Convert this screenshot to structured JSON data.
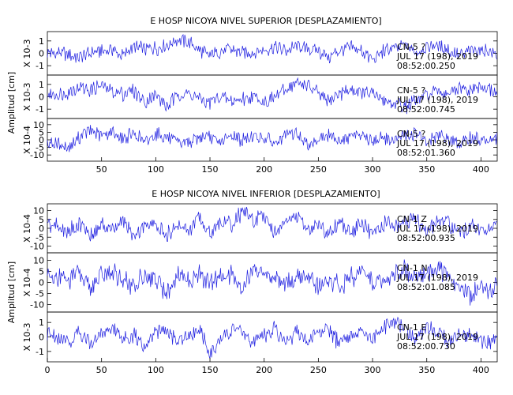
{
  "chart_data": [
    {
      "type": "line",
      "title": "E HOSP NICOYA NIVEL SUPERIOR [DESPLAZAMIENTO]",
      "ylabel": "Amplitud [cm]",
      "xlabel": "",
      "xlim": [
        0,
        415
      ],
      "xticks": [
        "50",
        "100",
        "150",
        "200",
        "250",
        "300",
        "350",
        "400"
      ],
      "grid": false,
      "line_color": "#2020e0",
      "panels": [
        {
          "scale_label": "X 10-3",
          "yticks": [
            "1",
            "0",
            "-1"
          ],
          "ylim": [
            -1.5,
            1.5
          ],
          "info": [
            "CN-5  ?",
            "JUL 17 (198), 2019",
            "08:52:00.250"
          ],
          "series": [
            {
              "x": [
                0,
                10,
                20,
                30,
                40,
                50,
                60,
                70,
                80,
                90,
                100,
                110,
                120,
                130,
                140,
                150,
                160,
                170,
                180,
                190,
                200,
                210,
                220,
                230,
                240,
                250,
                260,
                270,
                280,
                290,
                300,
                310,
                320,
                330,
                340,
                350,
                360,
                370,
                380,
                390,
                400,
                415
              ],
              "values": [
                0.1,
                0.0,
                -0.1,
                -0.3,
                0.0,
                0.2,
                0.3,
                -0.2,
                0.5,
                0.3,
                0.4,
                0.6,
                1.2,
                0.9,
                0.3,
                -0.2,
                0.2,
                0.3,
                0.0,
                0.1,
                0.3,
                0.5,
                0.2,
                0.6,
                0.4,
                0.2,
                -0.4,
                0.3,
                0.4,
                0.2,
                -0.6,
                0.2,
                0.4,
                0.7,
                0.1,
                0.5,
                0.6,
                0.3,
                -0.2,
                0.2,
                0.3,
                0.0
              ]
            }
          ]
        },
        {
          "scale_label": "X 10-3",
          "yticks": [
            "1",
            "0",
            "-1"
          ],
          "ylim": [
            -1.5,
            1.5
          ],
          "info": [
            "CN-5  ?",
            "JUL 17 (198), 2019",
            "08:52:00.745"
          ],
          "series": [
            {
              "x": [
                0,
                10,
                20,
                30,
                40,
                50,
                60,
                70,
                80,
                90,
                100,
                110,
                120,
                130,
                140,
                150,
                160,
                170,
                180,
                190,
                200,
                210,
                220,
                230,
                240,
                250,
                260,
                270,
                280,
                290,
                300,
                310,
                320,
                330,
                340,
                350,
                360,
                370,
                380,
                390,
                400,
                415
              ],
              "values": [
                0.1,
                0.2,
                0.4,
                0.8,
                0.6,
                0.9,
                0.4,
                0.3,
                0.5,
                -0.4,
                0.2,
                -0.8,
                0.1,
                0.2,
                -0.1,
                -0.5,
                0.0,
                -0.3,
                -0.2,
                0.1,
                -0.4,
                0.0,
                0.6,
                1.1,
                1.0,
                0.2,
                -0.4,
                0.3,
                0.5,
                0.4,
                0.2,
                -0.2,
                -0.6,
                -0.8,
                -0.4,
                0.1,
                0.4,
                0.3,
                0.6,
                0.5,
                0.8,
                0.3
              ]
            }
          ]
        },
        {
          "scale_label": "X 10-4",
          "yticks": [
            "10",
            "5",
            "0",
            "-5",
            "-10"
          ],
          "ylim": [
            -12,
            12
          ],
          "info": [
            "CN-5  ?",
            "JUL 17 (198), 2019",
            "08:52:01.360"
          ],
          "series": [
            {
              "x": [
                0,
                10,
                20,
                30,
                40,
                50,
                60,
                70,
                80,
                90,
                100,
                110,
                120,
                130,
                140,
                150,
                160,
                170,
                180,
                190,
                200,
                210,
                220,
                230,
                240,
                250,
                260,
                270,
                280,
                290,
                300,
                310,
                320,
                330,
                340,
                350,
                360,
                370,
                380,
                390,
                400,
                415
              ],
              "values": [
                -2,
                -3,
                -6,
                2,
                6,
                3,
                5,
                1,
                4,
                -2,
                4,
                2,
                -3,
                -1,
                2,
                1,
                -2,
                3,
                0,
                2,
                1,
                -2,
                2,
                4,
                -3,
                1,
                3,
                0,
                2,
                4,
                -1,
                1,
                0,
                3,
                4,
                -2,
                3,
                2,
                -4,
                1,
                0,
                1
              ]
            }
          ]
        }
      ]
    },
    {
      "type": "line",
      "title": "E HOSP NICOYA NIVEL INFERIOR [DESPLAZAMIENTO]",
      "ylabel": "Amplitud [cm]",
      "xlabel": "",
      "xlim": [
        0,
        415
      ],
      "xticks": [
        "0",
        "50",
        "100",
        "150",
        "200",
        "250",
        "300",
        "350",
        "400"
      ],
      "grid": false,
      "line_color": "#2020e0",
      "panels": [
        {
          "scale_label": "X 10-4",
          "yticks": [
            "10",
            "5",
            "0",
            "-5",
            "-10"
          ],
          "ylim": [
            -12,
            12
          ],
          "info": [
            "CN-1  Z",
            "JUL 17 (198), 2019",
            "08:52:00.935"
          ],
          "series": [
            {
              "x": [
                0,
                10,
                20,
                30,
                40,
                50,
                60,
                70,
                80,
                90,
                100,
                110,
                120,
                130,
                140,
                150,
                160,
                170,
                180,
                190,
                200,
                210,
                220,
                230,
                240,
                250,
                260,
                270,
                280,
                290,
                300,
                310,
                320,
                330,
                340,
                350,
                360,
                370,
                380,
                390,
                400,
                415
              ],
              "values": [
                2,
                1,
                -2,
                3,
                -4,
                2,
                -1,
                3,
                -5,
                2,
                1,
                -4,
                3,
                -2,
                6,
                -3,
                4,
                2,
                10,
                4,
                8,
                -2,
                3,
                6,
                -1,
                2,
                -3,
                4,
                -2,
                3,
                -4,
                2,
                1,
                3,
                5,
                -3,
                4,
                2,
                -2,
                1,
                -1,
                0
              ]
            }
          ]
        },
        {
          "scale_label": "X 10-4",
          "yticks": [
            "10",
            "5",
            "0",
            "-5",
            "-10"
          ],
          "ylim": [
            -12,
            12
          ],
          "info": [
            "CN-1  N",
            "JUL 17 (198), 2019",
            "08:52:01.085"
          ],
          "series": [
            {
              "x": [
                0,
                10,
                20,
                30,
                40,
                50,
                60,
                70,
                80,
                90,
                100,
                110,
                120,
                130,
                140,
                150,
                160,
                170,
                180,
                190,
                200,
                210,
                220,
                230,
                240,
                250,
                260,
                270,
                280,
                290,
                300,
                310,
                320,
                330,
                340,
                350,
                360,
                370,
                380,
                390,
                400,
                415
              ],
              "values": [
                2,
                3,
                1,
                4,
                -2,
                3,
                5,
                1,
                -3,
                4,
                2,
                -5,
                3,
                1,
                4,
                -1,
                2,
                3,
                -2,
                6,
                4,
                1,
                -1,
                2,
                3,
                -2,
                1,
                -1,
                2,
                4,
                0,
                1,
                3,
                6,
                2,
                4,
                7,
                3,
                -2,
                -6,
                -3,
                -2
              ]
            }
          ]
        },
        {
          "scale_label": "X 10-3",
          "yticks": [
            "1",
            "0",
            "-1"
          ],
          "ylim": [
            -1.5,
            1.5
          ],
          "info": [
            "CN-1  E",
            "JUL 17 (198), 2019",
            "08:52:00.730"
          ],
          "series": [
            {
              "x": [
                0,
                10,
                20,
                30,
                40,
                50,
                60,
                70,
                80,
                90,
                100,
                110,
                120,
                130,
                140,
                150,
                160,
                170,
                180,
                190,
                200,
                210,
                220,
                230,
                240,
                250,
                260,
                270,
                280,
                290,
                300,
                310,
                320,
                330,
                340,
                350,
                360,
                370,
                380,
                390,
                400,
                415
              ],
              "values": [
                0.2,
                0.0,
                -0.3,
                0.4,
                -0.5,
                0.3,
                0.6,
                -0.2,
                0.2,
                -0.6,
                0.3,
                0.4,
                -0.3,
                0.2,
                0.5,
                -1.2,
                -0.2,
                0.6,
                0.3,
                -0.4,
                0.2,
                0.5,
                -0.3,
                0.4,
                -0.2,
                0.3,
                0.5,
                -0.6,
                0.2,
                0.4,
                -0.3,
                0.6,
                1.1,
                0.5,
                -0.2,
                0.7,
                0.3,
                -0.4,
                0.3,
                0.1,
                -0.3,
                -0.2
              ]
            }
          ]
        }
      ]
    }
  ]
}
